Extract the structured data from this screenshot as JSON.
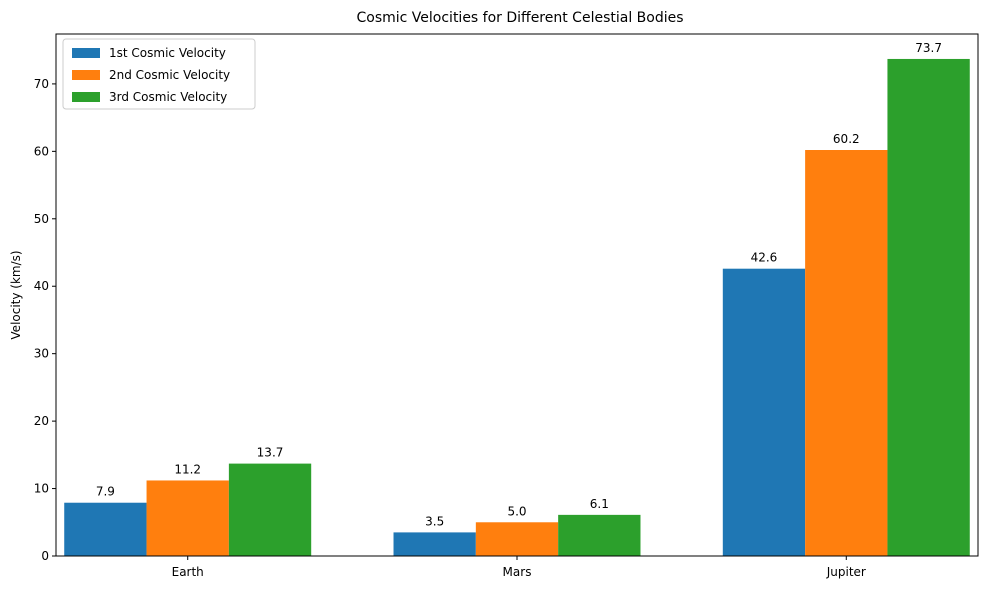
{
  "chart_data": {
    "type": "bar",
    "title": "Cosmic Velocities for Different Celestial Bodies",
    "xlabel": "",
    "ylabel": "Velocity (km/s)",
    "categories": [
      "Earth",
      "Mars",
      "Jupiter"
    ],
    "series": [
      {
        "name": "1st Cosmic Velocity",
        "color": "#1f77b4",
        "values": [
          7.9,
          3.5,
          42.6
        ],
        "labels": [
          "7.9",
          "3.5",
          "42.6"
        ]
      },
      {
        "name": "2nd Cosmic Velocity",
        "color": "#ff7f0e",
        "values": [
          11.2,
          5.0,
          60.2
        ],
        "labels": [
          "11.2",
          "5.0",
          "60.2"
        ]
      },
      {
        "name": "3rd Cosmic Velocity",
        "color": "#2ca02c",
        "values": [
          13.7,
          6.1,
          73.7
        ],
        "labels": [
          "13.7",
          "6.1",
          "73.7"
        ]
      }
    ],
    "ylim": [
      0,
      77.4
    ],
    "yticks": [
      0,
      10,
      20,
      30,
      40,
      50,
      60,
      70
    ],
    "grid": false,
    "legend": "top-left"
  }
}
